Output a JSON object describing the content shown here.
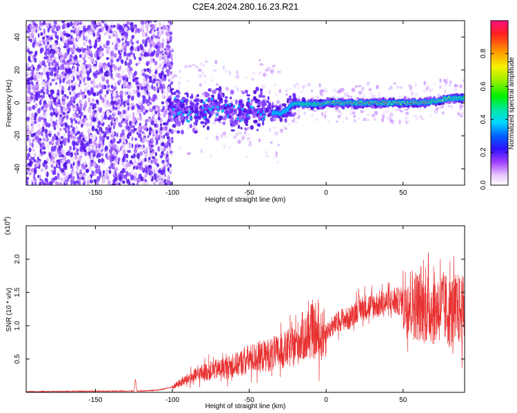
{
  "title": "C2E4.2024.280.16.23.R21",
  "colors": {
    "snr_line": "#e83030",
    "frame": "#000000"
  },
  "chart_data": [
    {
      "type": "heatmap",
      "xlabel": "Height of straight line (km)",
      "ylabel": "Frequency (Hz)",
      "xlim": [
        -195,
        90
      ],
      "ylim": [
        -50,
        50
      ],
      "x_ticks": [
        -150,
        -100,
        -50,
        0,
        50
      ],
      "y_ticks": [
        -40,
        -20,
        0,
        20,
        40
      ],
      "colorbar": {
        "label": "Normalized spectral amplitude",
        "range": [
          0,
          1
        ],
        "ticks": [
          0.0,
          0.2,
          0.4,
          0.6,
          0.8
        ]
      },
      "ridge": {
        "description_points_x": [
          -100,
          -90,
          -80,
          -70,
          -60,
          -50,
          -40,
          -30,
          -20,
          -10,
          0,
          10,
          20,
          30,
          40,
          50,
          60,
          70,
          80,
          90
        ],
        "frequency_hz": [
          -3,
          -6,
          -4,
          -2,
          -6,
          -4,
          -4,
          -7,
          0,
          -1,
          0,
          0,
          0,
          0,
          0,
          0,
          0,
          1,
          3,
          3
        ]
      }
    },
    {
      "type": "line",
      "xlabel": "Height of straight line (km)",
      "ylabel": "SNR (10 * v/v)",
      "y_multiplier": "(x10",
      "y_multiplier_exp": "4",
      "y_multiplier_close": ")",
      "xlim": [
        -195,
        90
      ],
      "ylim": [
        0,
        2.5
      ],
      "x_ticks": [
        -150,
        -100,
        -50,
        0,
        50
      ],
      "y_ticks": [
        0.5,
        1.0,
        1.5,
        2.0
      ],
      "series": [
        {
          "x": [
            -195,
            -125,
            -124,
            -123,
            -110,
            -100,
            -90,
            -80,
            -70,
            -60,
            -50,
            -40,
            -30,
            -20,
            -15,
            -12,
            -10,
            -5,
            0,
            5,
            10,
            15,
            20,
            30,
            40,
            50,
            55,
            60,
            70,
            75,
            80,
            85,
            90
          ],
          "values": [
            0.01,
            0.02,
            0.2,
            0.02,
            0.03,
            0.08,
            0.2,
            0.3,
            0.35,
            0.4,
            0.5,
            0.55,
            0.6,
            0.7,
            0.85,
            0.75,
            0.95,
            0.8,
            0.9,
            1.0,
            1.1,
            1.1,
            1.25,
            1.3,
            1.35,
            1.37,
            1.35,
            1.3,
            1.25,
            1.3,
            1.2,
            1.25,
            1.2
          ]
        }
      ]
    }
  ]
}
